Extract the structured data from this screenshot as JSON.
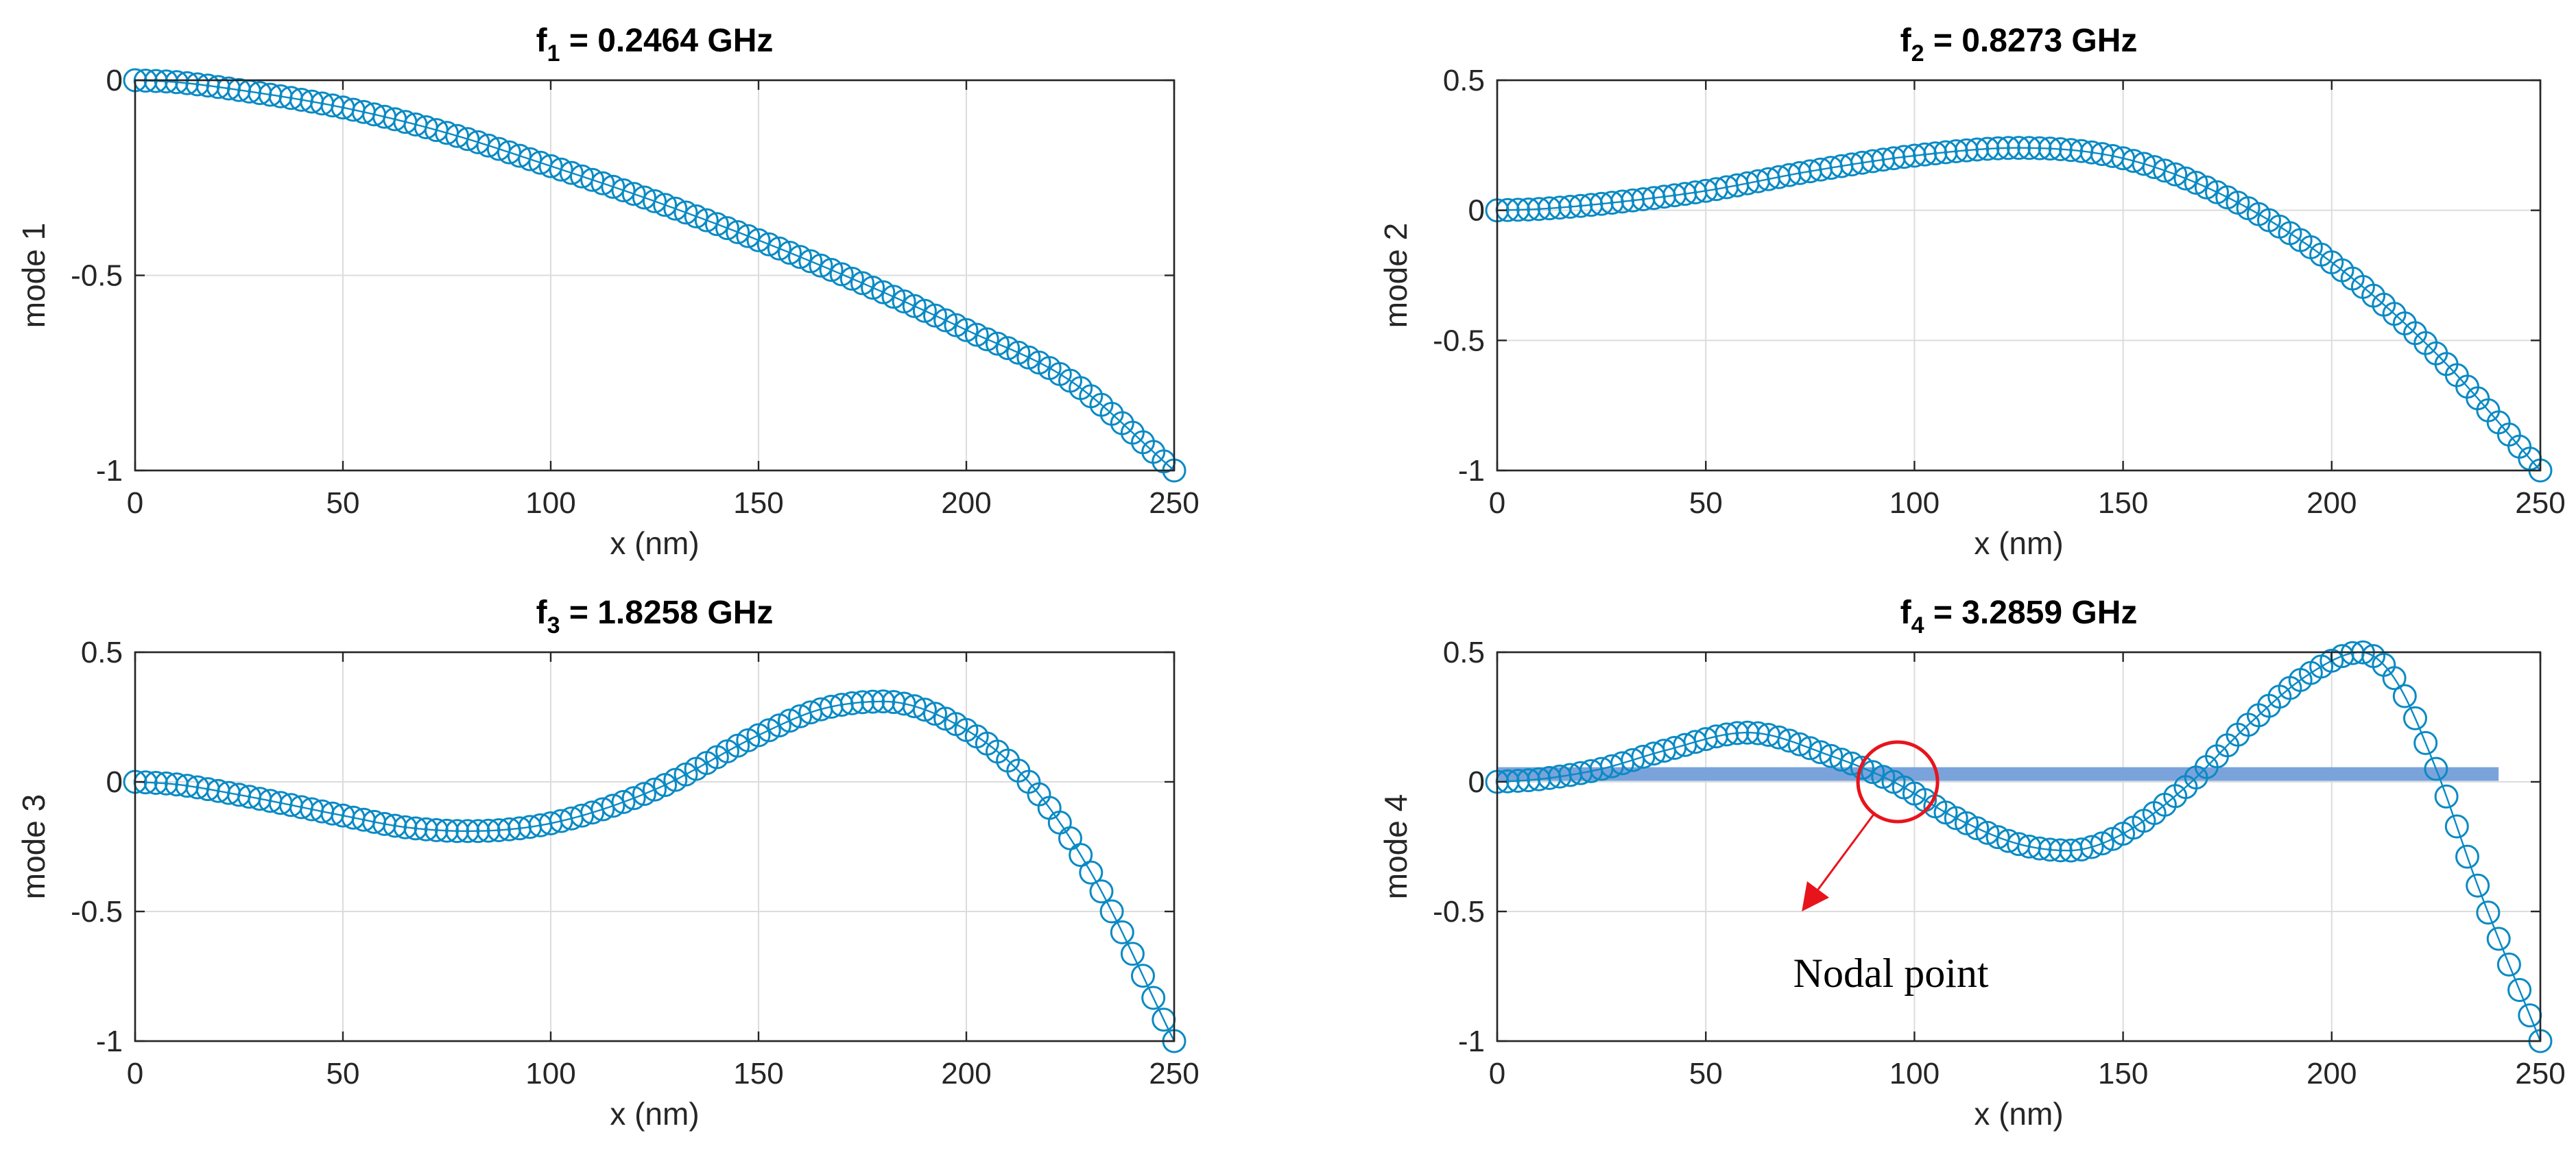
{
  "colors": {
    "series": "#0a8ac4",
    "reference_band": "#7aa3dc",
    "annotation": "#e8141c"
  },
  "chart_data": [
    {
      "type": "line",
      "title": {
        "prefix": "f",
        "subscript": "1",
        "suffix": " = 0.2464 GHz"
      },
      "xlabel": "x (nm)",
      "ylabel": "mode 1",
      "xlim": [
        0,
        250
      ],
      "ylim": [
        -1,
        0
      ],
      "xticks": [
        0,
        50,
        100,
        150,
        200,
        250
      ],
      "yticks": [
        -1,
        -0.5,
        0
      ],
      "ytick_labels": [
        "-1",
        "-0.5",
        "0"
      ],
      "grid": true,
      "marker": "circle",
      "x": [
        0,
        10,
        25,
        50,
        75,
        100,
        125,
        150,
        175,
        200,
        225,
        250
      ],
      "y": [
        0,
        -0.005,
        -0.025,
        -0.07,
        -0.135,
        -0.22,
        -0.31,
        -0.41,
        -0.52,
        -0.64,
        -0.77,
        -1.0
      ]
    },
    {
      "type": "line",
      "title": {
        "prefix": "f",
        "subscript": "2",
        "suffix": " = 0.8273 GHz"
      },
      "xlabel": "x (nm)",
      "ylabel": "mode 2",
      "xlim": [
        0,
        250
      ],
      "ylim": [
        -1,
        0.5
      ],
      "xticks": [
        0,
        50,
        100,
        150,
        200,
        250
      ],
      "yticks": [
        -1,
        -0.5,
        0,
        0.5
      ],
      "ytick_labels": [
        "-1",
        "-0.5",
        "0",
        "0.5"
      ],
      "grid": true,
      "marker": "circle",
      "x": [
        0,
        10,
        25,
        50,
        75,
        100,
        125,
        150,
        175,
        200,
        225,
        250
      ],
      "y": [
        0,
        0.005,
        0.025,
        0.075,
        0.15,
        0.21,
        0.24,
        0.2,
        0.05,
        -0.2,
        -0.55,
        -1.0
      ]
    },
    {
      "type": "line",
      "title": {
        "prefix": "f",
        "subscript": "3",
        "suffix": " = 1.8258 GHz"
      },
      "xlabel": "x (nm)",
      "ylabel": "mode 3",
      "xlim": [
        0,
        250
      ],
      "ylim": [
        -1,
        0.5
      ],
      "xticks": [
        0,
        50,
        100,
        150,
        200,
        250
      ],
      "yticks": [
        -1,
        -0.5,
        0,
        0.5
      ],
      "ytick_labels": [
        "-1",
        "-0.5",
        "0",
        "0.5"
      ],
      "grid": true,
      "marker": "circle",
      "x": [
        0,
        10,
        25,
        50,
        65,
        80,
        100,
        125,
        150,
        165,
        180,
        200,
        215,
        230,
        250
      ],
      "y": [
        0,
        -0.01,
        -0.05,
        -0.13,
        -0.175,
        -0.19,
        -0.16,
        -0.03,
        0.18,
        0.28,
        0.31,
        0.2,
        0.0,
        -0.35,
        -1.0
      ]
    },
    {
      "type": "line",
      "title": {
        "prefix": "f",
        "subscript": "4",
        "suffix": " = 3.2859 GHz"
      },
      "xlabel": "x (nm)",
      "ylabel": "mode 4",
      "xlim": [
        0,
        250
      ],
      "ylim": [
        -1,
        0.5
      ],
      "xticks": [
        0,
        50,
        100,
        150,
        200,
        250
      ],
      "yticks": [
        -1,
        -0.5,
        0,
        0.5
      ],
      "ytick_labels": [
        "-1",
        "-0.5",
        "0",
        "0.5"
      ],
      "grid": true,
      "marker": "circle",
      "x": [
        0,
        10,
        25,
        40,
        60,
        80,
        95,
        110,
        125,
        137,
        150,
        165,
        180,
        195,
        207,
        215,
        225,
        235,
        250
      ],
      "y": [
        0,
        0.01,
        0.05,
        0.12,
        0.19,
        0.1,
        0.0,
        -0.14,
        -0.24,
        -0.265,
        -0.2,
        -0.02,
        0.22,
        0.42,
        0.5,
        0.4,
        0.05,
        -0.4,
        -1.0
      ],
      "reference_band": {
        "x": [
          0,
          240
        ],
        "y": 0.03
      },
      "annotation": {
        "text": "Nodal point",
        "circle_at": [
          96,
          0.0
        ],
        "arrow_to": [
          73,
          -0.5
        ]
      }
    }
  ]
}
